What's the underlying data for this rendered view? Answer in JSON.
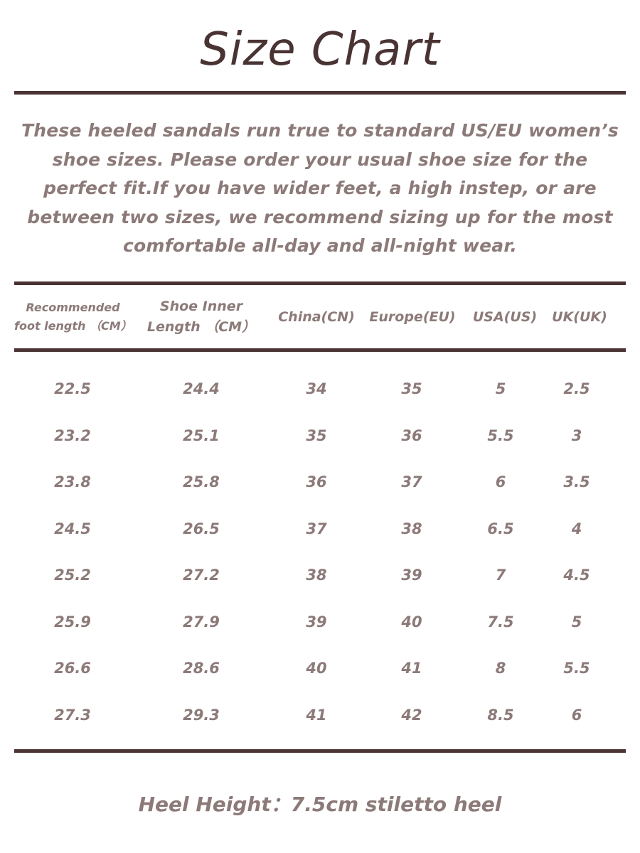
{
  "title": "Size Chart",
  "intro": "These heeled sandals run true to standard US/EU women’s shoe sizes. Please order your usual shoe size for the perfect fit.If you have wider feet, a high instep, or are between two sizes, we recommend sizing up for the most comfortable all-day and all-night wear.",
  "table": {
    "headers": [
      "Recommended foot length （CM）",
      "Shoe Inner Length （CM）",
      "China(CN)",
      "Europe(EU)",
      "USA(US)",
      "UK(UK)"
    ],
    "rows": [
      [
        "22.5",
        "24.4",
        "34",
        "35",
        "5",
        "2.5"
      ],
      [
        "23.2",
        "25.1",
        "35",
        "36",
        "5.5",
        "3"
      ],
      [
        "23.8",
        "25.8",
        "36",
        "37",
        "6",
        "3.5"
      ],
      [
        "24.5",
        "26.5",
        "37",
        "38",
        "6.5",
        "4"
      ],
      [
        "25.2",
        "27.2",
        "38",
        "39",
        "7",
        "4.5"
      ],
      [
        "25.9",
        "27.9",
        "39",
        "40",
        "7.5",
        "5"
      ],
      [
        "26.6",
        "28.6",
        "40",
        "41",
        "8",
        "5.5"
      ],
      [
        "27.3",
        "29.3",
        "41",
        "42",
        "8.5",
        "6"
      ]
    ]
  },
  "footer": "Heel Height：7.5cm stiletto heel",
  "colors": {
    "title": "#4a3333",
    "text": "#8c7a79",
    "rule": "#4a3333"
  }
}
